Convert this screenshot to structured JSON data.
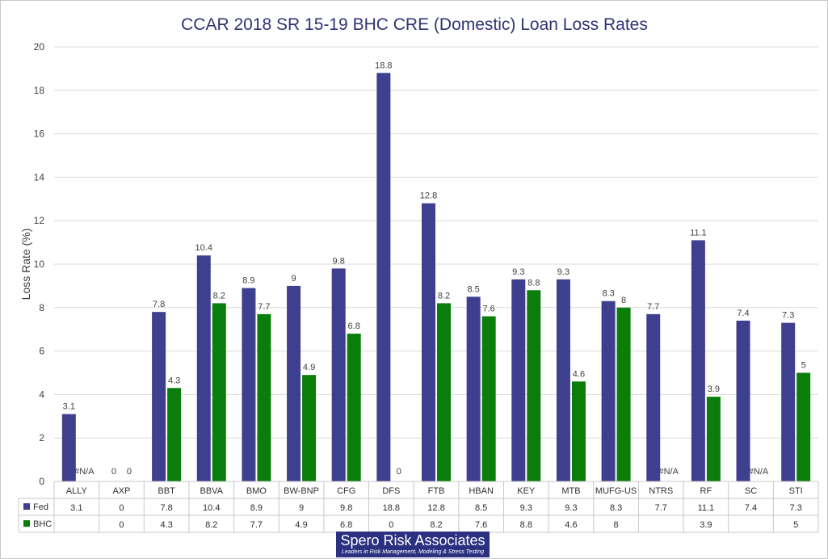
{
  "chart_data": {
    "type": "bar",
    "title": "CCAR 2018 SR 15-19 BHC CRE (Domestic) Loan Loss Rates",
    "ylabel": "Loss Rate (%)",
    "ylim": [
      0,
      20
    ],
    "yticks": [
      0,
      2,
      4,
      6,
      8,
      10,
      12,
      14,
      16,
      18,
      20
    ],
    "grid": true,
    "legend": "data table rows",
    "categories": [
      "ALLY",
      "AXP",
      "BBT",
      "BBVA",
      "BMO",
      "BW-BNP",
      "CFG",
      "DFS",
      "FTB",
      "HBAN",
      "KEY",
      "MTB",
      "MUFG-US",
      "NTRS",
      "RF",
      "SC",
      "STI"
    ],
    "series": [
      {
        "name": "Fed",
        "color": "#3f3f8f",
        "values": [
          3.1,
          0,
          7.8,
          10.4,
          8.9,
          9,
          9.8,
          18.8,
          12.8,
          8.5,
          9.3,
          9.3,
          8.3,
          7.7,
          11.1,
          7.4,
          7.3
        ],
        "labels": [
          "3.1",
          "0",
          "7.8",
          "10.4",
          "8.9",
          "9",
          "9.8",
          "18.8",
          "12.8",
          "8.5",
          "9.3",
          "9.3",
          "8.3",
          "7.7",
          "11.1",
          "7.4",
          "7.3"
        ]
      },
      {
        "name": "BHC",
        "color": "#0a7d0a",
        "values": [
          null,
          0,
          4.3,
          8.2,
          7.7,
          4.9,
          6.8,
          0,
          8.2,
          7.6,
          8.8,
          4.6,
          8,
          null,
          3.9,
          null,
          5
        ],
        "labels": [
          "#N/A",
          "0",
          "4.3",
          "8.2",
          "7.7",
          "4.9",
          "6.8",
          "0",
          "8.2",
          "7.6",
          "8.8",
          "4.6",
          "8",
          "#N/A",
          "3.9",
          "#N/A",
          "5"
        ],
        "table": [
          "",
          "0",
          "4.3",
          "8.2",
          "7.7",
          "4.9",
          "6.8",
          "0",
          "8.2",
          "7.6",
          "8.8",
          "4.6",
          "8",
          "",
          "3.9",
          "",
          "5"
        ]
      }
    ]
  },
  "logo": {
    "name": "Spero Risk Associates",
    "tagline": "Leaders in Risk Management, Modeling & Stress Testing"
  }
}
